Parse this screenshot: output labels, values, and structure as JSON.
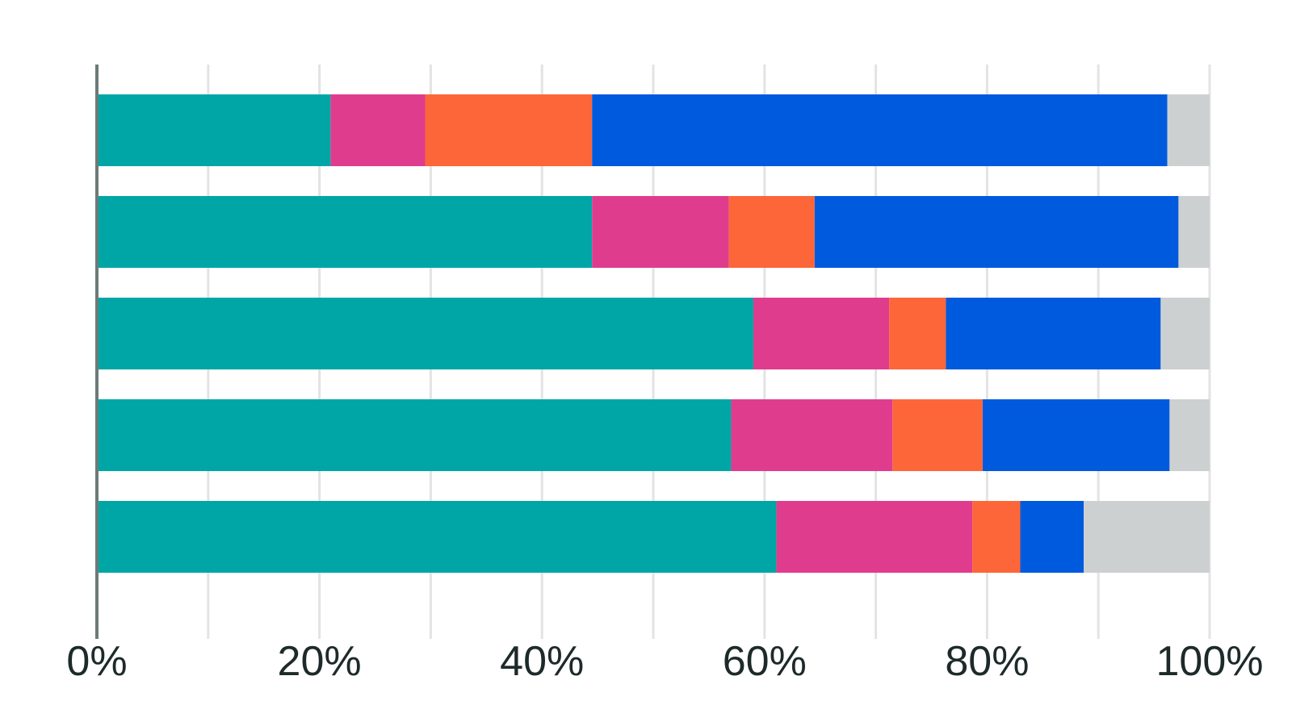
{
  "chart_data": {
    "type": "bar",
    "orientation": "horizontal",
    "stacked": true,
    "normalized": true,
    "title": "",
    "xlabel": "",
    "ylabel": "",
    "xlim": [
      0,
      100
    ],
    "grid": true,
    "legend": "none",
    "x_ticks": [
      "0%",
      "20%",
      "40%",
      "60%",
      "80%",
      "100%"
    ],
    "categories": [
      "",
      "",
      "",
      "",
      ""
    ],
    "series": [
      {
        "color": "#00a6a6",
        "values": [
          21,
          44.5,
          59,
          57,
          61
        ]
      },
      {
        "color": "#e03c8e",
        "values": [
          8.5,
          12.3,
          12.2,
          14.5,
          17.6
        ]
      },
      {
        "color": "#fd6639",
        "values": [
          15,
          7.7,
          5.1,
          8.1,
          4.3
        ]
      },
      {
        "color": "#005ade",
        "values": [
          51.7,
          32.7,
          19.3,
          16.8,
          5.7
        ]
      },
      {
        "color": "#cdd0d1",
        "values": [
          3.8,
          2.8,
          4.4,
          3.6,
          11.3
        ]
      }
    ]
  }
}
